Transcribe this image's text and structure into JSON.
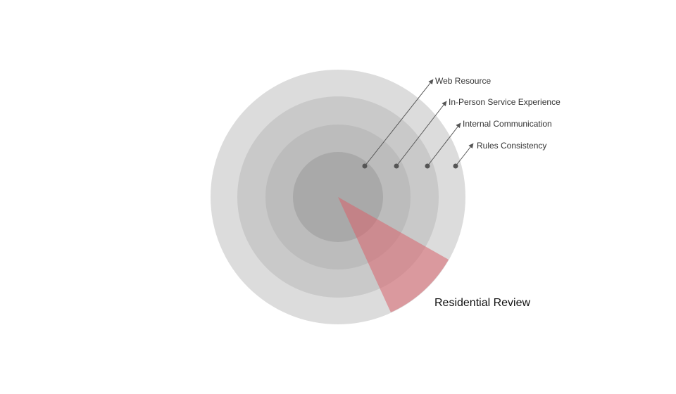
{
  "diagram": {
    "rings": [
      {
        "label": "Web Resource",
        "color": "#a9a9a9"
      },
      {
        "label": "In-Person Service Experience",
        "color": "#bcbcbc"
      },
      {
        "label": "Internal Communication",
        "color": "#c9c9c9"
      },
      {
        "label": "Rules Consistency",
        "color": "#dcdcdc"
      }
    ],
    "wedge": {
      "label": "Residential Review",
      "color": "#d9636b"
    },
    "arrow_color": "#555555"
  }
}
